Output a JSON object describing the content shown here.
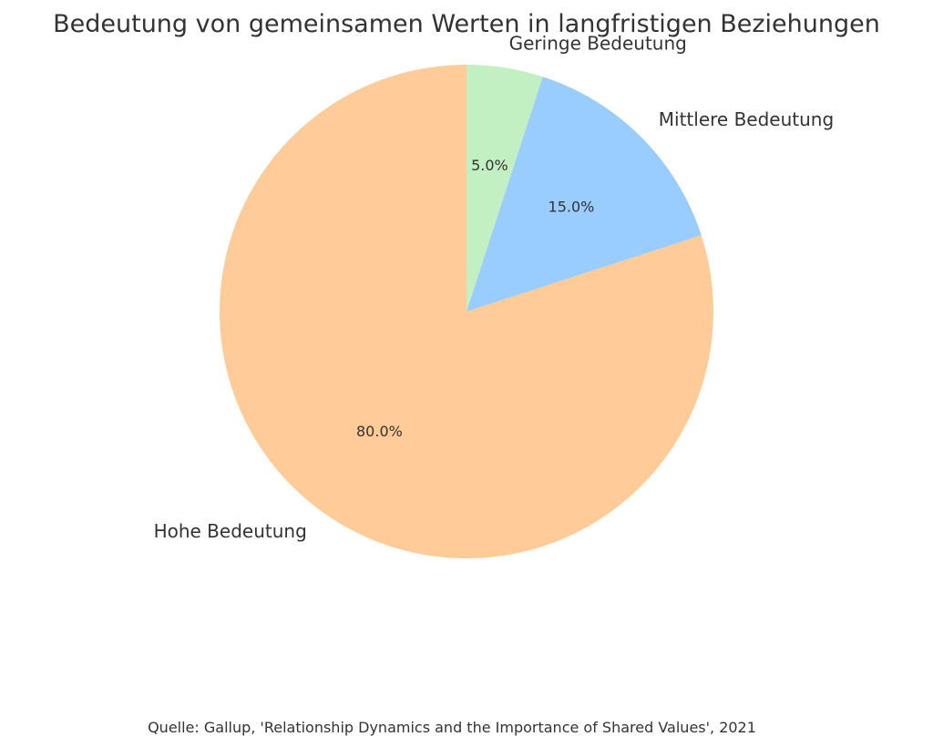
{
  "chart_data": {
    "type": "pie",
    "title": "Bedeutung von gemeinsamen Werten in langfristigen Beziehungen",
    "slices": [
      {
        "label": "Geringe Bedeutung",
        "value": 5.0,
        "pct_label": "5.0%",
        "color": "#c2f0c2"
      },
      {
        "label": "Mittlere Bedeutung",
        "value": 15.0,
        "pct_label": "15.0%",
        "color": "#99ccff"
      },
      {
        "label": "Hohe Bedeutung",
        "value": 80.0,
        "pct_label": "80.0%",
        "color": "#ffcc99"
      }
    ],
    "start_angle": "top",
    "direction": "clockwise",
    "legend": "none"
  },
  "source": "Quelle: Gallup, 'Relationship Dynamics and the Importance of Shared Values', 2021"
}
